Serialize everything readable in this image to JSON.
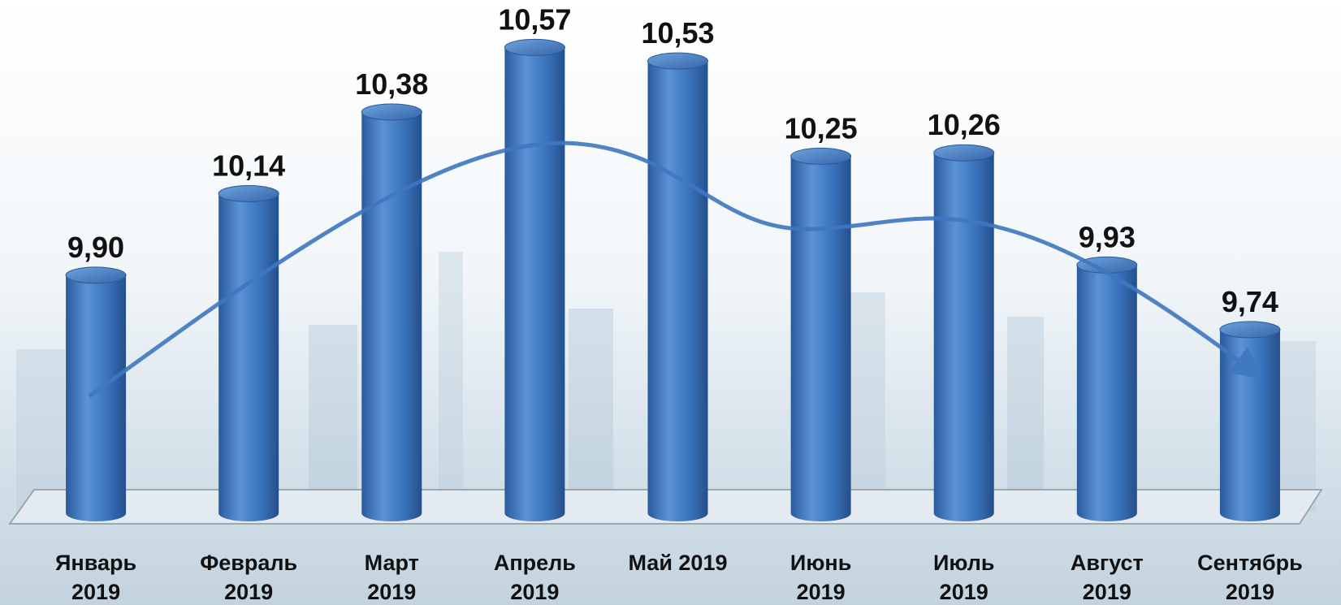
{
  "chart_data": {
    "type": "bar",
    "categories": [
      "Январь 2019",
      "Февраль 2019",
      "Март 2019",
      "Апрель 2019",
      "Май 2019",
      "Июнь 2019",
      "Июль 2019",
      "Август 2019",
      "Сентябрь 2019"
    ],
    "values": [
      9.9,
      10.14,
      10.38,
      10.57,
      10.53,
      10.25,
      10.26,
      9.93,
      9.74
    ],
    "value_labels": [
      "9,90",
      "10,14",
      "10,38",
      "10,57",
      "10,53",
      "10,25",
      "10,26",
      "9,93",
      "9,74"
    ],
    "color": "#3f77c0",
    "ylim": [
      9.2,
      10.7
    ]
  }
}
